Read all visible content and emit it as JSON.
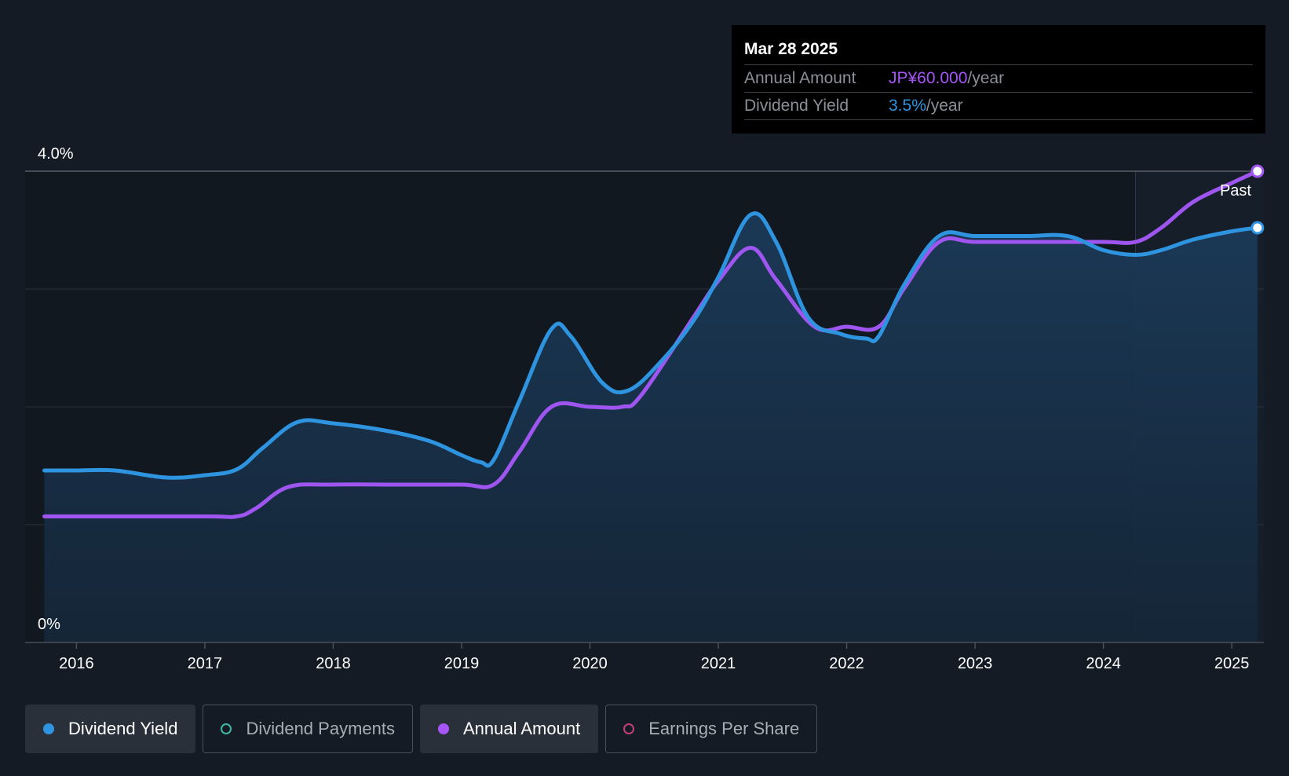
{
  "chart_data": {
    "type": "line",
    "y_tick_labels": [
      "4.0%",
      "0%"
    ],
    "x_tick_labels": [
      "2016",
      "2017",
      "2018",
      "2019",
      "2020",
      "2021",
      "2022",
      "2023",
      "2024",
      "2025"
    ],
    "ylim": [
      0,
      4.0
    ],
    "xlim": [
      2015.6,
      2025.25
    ],
    "forecast_start": 2024.25,
    "forecast_label": "Past",
    "grid": true,
    "series": [
      {
        "name": "Dividend Yield",
        "color": "#2f94e0",
        "x": [
          2015.75,
          2016.0,
          2016.3,
          2016.7,
          2017.0,
          2017.25,
          2017.45,
          2017.72,
          2018.0,
          2018.4,
          2018.75,
          2019.0,
          2019.15,
          2019.25,
          2019.45,
          2019.7,
          2019.85,
          2020.1,
          2020.3,
          2020.55,
          2020.8,
          2021.0,
          2021.25,
          2021.45,
          2021.7,
          2021.95,
          2022.15,
          2022.25,
          2022.45,
          2022.72,
          2023.0,
          2023.4,
          2023.72,
          2024.0,
          2024.25,
          2024.45,
          2024.7,
          2025.0,
          2025.2
        ],
        "y": [
          1.46,
          1.46,
          1.46,
          1.4,
          1.42,
          1.47,
          1.65,
          1.87,
          1.86,
          1.8,
          1.71,
          1.59,
          1.53,
          1.55,
          2.05,
          2.66,
          2.6,
          2.2,
          2.14,
          2.38,
          2.72,
          3.1,
          3.63,
          3.4,
          2.76,
          2.62,
          2.58,
          2.6,
          3.04,
          3.45,
          3.45,
          3.45,
          3.45,
          3.33,
          3.29,
          3.33,
          3.42,
          3.49,
          3.52
        ]
      },
      {
        "name": "Annual Amount",
        "color": "#9f56f0",
        "x": [
          2015.75,
          2016.0,
          2017.0,
          2017.25,
          2017.4,
          2017.65,
          2018.0,
          2018.5,
          2019.0,
          2019.25,
          2019.45,
          2019.7,
          2020.0,
          2020.25,
          2020.4,
          2020.8,
          2021.0,
          2021.25,
          2021.45,
          2021.75,
          2022.0,
          2022.25,
          2022.45,
          2022.72,
          2023.0,
          2023.5,
          2024.0,
          2024.25,
          2024.45,
          2024.7,
          2025.0,
          2025.2
        ],
        "y": [
          1.07,
          1.07,
          1.07,
          1.07,
          1.14,
          1.32,
          1.34,
          1.34,
          1.34,
          1.34,
          1.62,
          2.0,
          2.0,
          2.0,
          2.1,
          2.75,
          3.07,
          3.35,
          3.08,
          2.68,
          2.68,
          2.68,
          3.01,
          3.4,
          3.4,
          3.4,
          3.4,
          3.4,
          3.52,
          3.74,
          3.9,
          4.0
        ]
      }
    ]
  },
  "tooltip": {
    "date": "Mar 28 2025",
    "annual_amount_label": "Annual Amount",
    "annual_amount_value": "JP¥60.000",
    "annual_amount_unit": "/year",
    "dividend_yield_label": "Dividend Yield",
    "dividend_yield_value": "3.5%",
    "dividend_yield_unit": "/year",
    "amount_color": "#a855f7",
    "yield_color": "#2f94e0"
  },
  "legend": [
    {
      "label": "Dividend Yield",
      "color": "#2f94e0",
      "active": true,
      "filled": true
    },
    {
      "label": "Dividend Payments",
      "color": "#3fb8a8",
      "active": false,
      "filled": false
    },
    {
      "label": "Annual Amount",
      "color": "#a855f7",
      "active": true,
      "filled": true
    },
    {
      "label": "Earnings Per Share",
      "color": "#c2407a",
      "active": false,
      "filled": false
    }
  ]
}
